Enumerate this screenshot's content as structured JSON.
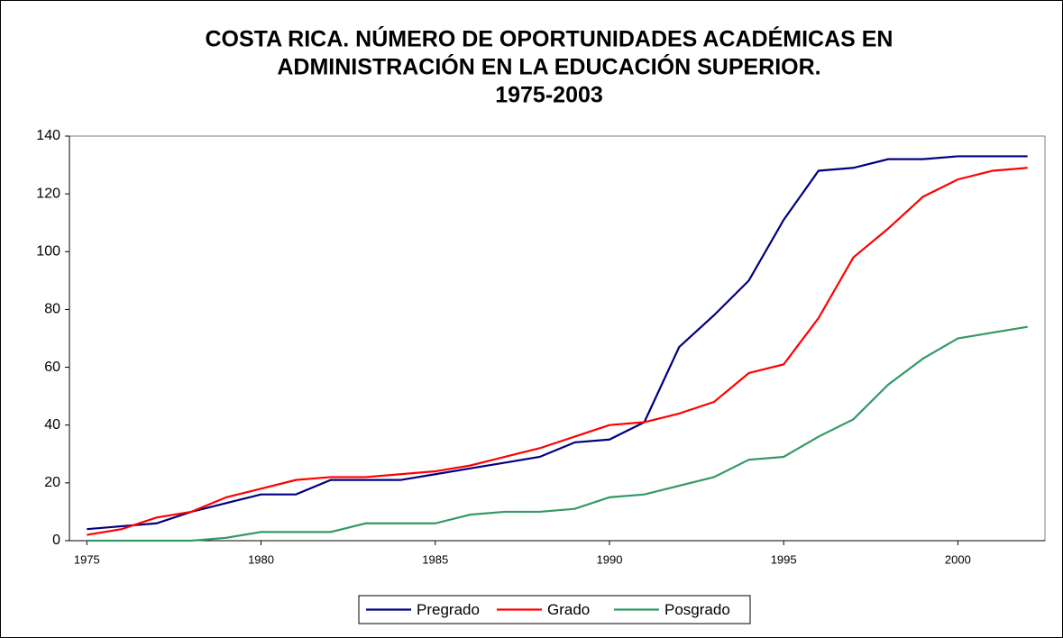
{
  "chart_data": {
    "type": "line",
    "title": [
      "COSTA RICA. NÚMERO DE OPORTUNIDADES ACADÉMICAS EN",
      "ADMINISTRACIÓN EN LA EDUCACIÓN SUPERIOR.",
      "1975-2003"
    ],
    "x": [
      1975,
      1976,
      1977,
      1978,
      1979,
      1980,
      1981,
      1982,
      1983,
      1984,
      1985,
      1986,
      1987,
      1988,
      1989,
      1990,
      1991,
      1992,
      1993,
      1994,
      1995,
      1996,
      1997,
      1998,
      1999,
      2000,
      2001,
      2002
    ],
    "series": [
      {
        "name": "Pregrado",
        "color": "#000080",
        "values": [
          4,
          5,
          6,
          10,
          13,
          16,
          16,
          21,
          21,
          21,
          23,
          25,
          27,
          29,
          34,
          35,
          41,
          67,
          78,
          90,
          111,
          128,
          129,
          132,
          132,
          133,
          133,
          133
        ]
      },
      {
        "name": "Grado",
        "color": "#ff0000",
        "values": [
          2,
          4,
          8,
          10,
          15,
          18,
          21,
          22,
          22,
          23,
          24,
          26,
          29,
          32,
          36,
          40,
          41,
          44,
          48,
          58,
          61,
          77,
          98,
          108,
          119,
          125,
          128,
          129
        ]
      },
      {
        "name": "Posgrado",
        "color": "#339966",
        "values": [
          0,
          0,
          0,
          0,
          1,
          3,
          3,
          3,
          6,
          6,
          6,
          9,
          10,
          10,
          11,
          15,
          16,
          19,
          22,
          28,
          29,
          36,
          42,
          54,
          63,
          70,
          72,
          74
        ]
      }
    ],
    "xlim": [
      1974.5,
      2002.5
    ],
    "xticks": [
      1975,
      1980,
      1985,
      1990,
      1995,
      2000
    ],
    "ylim": [
      0,
      140
    ],
    "yticks": [
      0,
      20,
      40,
      60,
      80,
      100,
      120,
      140
    ],
    "legend": "bottom"
  }
}
